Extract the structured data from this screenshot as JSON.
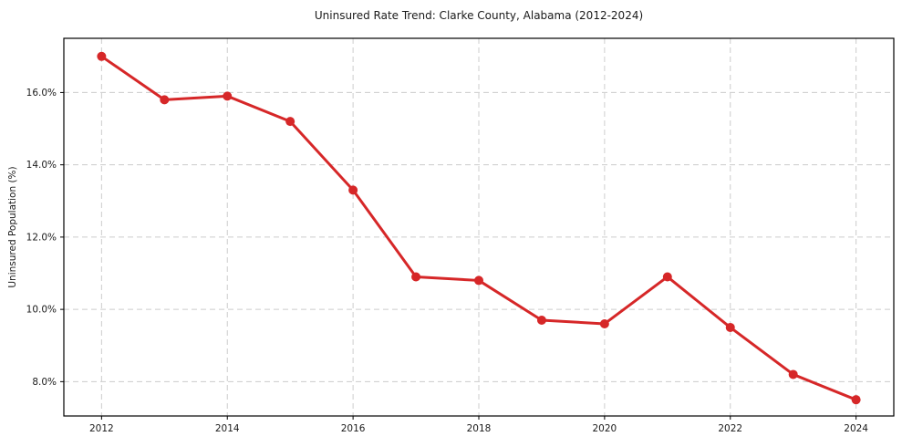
{
  "chart_data": {
    "type": "line",
    "title": "Uninsured Rate Trend: Clarke County, Alabama (2012-2024)",
    "xlabel": "",
    "ylabel": "Uninsured Population (%)",
    "x": [
      2012,
      2013,
      2014,
      2015,
      2016,
      2017,
      2018,
      2019,
      2020,
      2021,
      2022,
      2023,
      2024
    ],
    "values": [
      17.0,
      15.8,
      15.9,
      15.2,
      13.3,
      10.9,
      10.8,
      9.7,
      9.6,
      10.9,
      9.5,
      8.2,
      7.5
    ],
    "x_ticks": [
      2012,
      2014,
      2016,
      2018,
      2020,
      2022,
      2024
    ],
    "x_tick_labels": [
      "2012",
      "2014",
      "2016",
      "2018",
      "2020",
      "2022",
      "2024"
    ],
    "y_ticks": [
      8,
      10,
      12,
      14,
      16
    ],
    "y_tick_labels": [
      "8.0%",
      "10.0%",
      "12.0%",
      "14.0%",
      "16.0%"
    ],
    "xlim": [
      2011.4,
      2024.6
    ],
    "ylim": [
      7.05,
      17.5
    ],
    "grid": true,
    "grid_style": "dashed",
    "legend": false,
    "line_color": "#d62728",
    "marker": "circle",
    "marker_radius": 5,
    "line_width": 3,
    "grid_color": "#cccccc",
    "axis_color": "#000000",
    "background": "#ffffff"
  }
}
